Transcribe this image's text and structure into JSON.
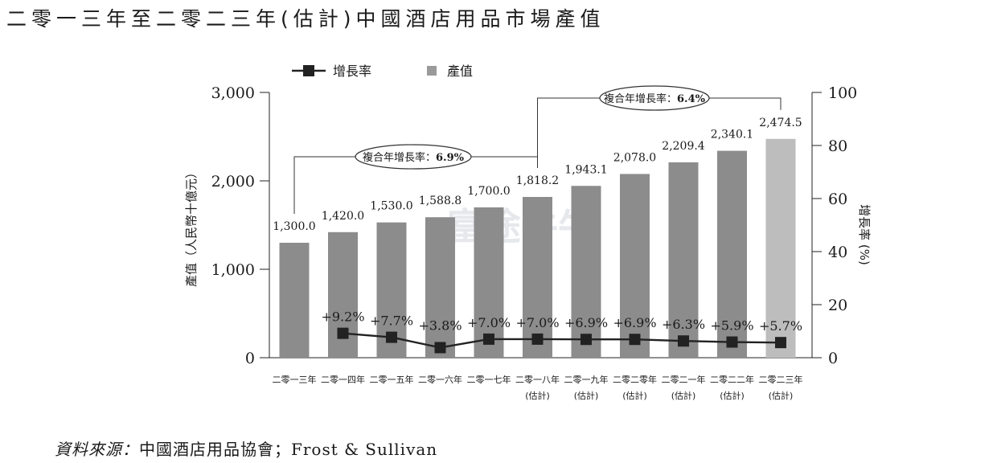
{
  "title": "二零一三年至二零二三年(估計)中國酒店用品市場產值",
  "source": {
    "label": "資料來源：",
    "text": "中國酒店用品協會；Frost & Sullivan"
  },
  "legend": {
    "growth": "增長率",
    "value": "產值"
  },
  "cagr": [
    {
      "label": "複合年增長率：",
      "value": "6.9%"
    },
    {
      "label": "複合年增長率：",
      "value": "6.4%"
    }
  ],
  "watermark": "富途牛牛",
  "chart_data": {
    "type": "bar",
    "categories": [
      [
        "二零一三年",
        ""
      ],
      [
        "二零一四年",
        ""
      ],
      [
        "二零一五年",
        ""
      ],
      [
        "二零一六年",
        ""
      ],
      [
        "二零一七年",
        ""
      ],
      [
        "二零一八年",
        "(估計)"
      ],
      [
        "二零一九年",
        "(估計)"
      ],
      [
        "二零二零年",
        "(估計)"
      ],
      [
        "二零二一年",
        "(估計)"
      ],
      [
        "二零二二年",
        "(估計)"
      ],
      [
        "二零二三年",
        "(估計)"
      ]
    ],
    "series": [
      {
        "name": "產值",
        "axis": "left",
        "values": [
          1300.0,
          1420.0,
          1530.0,
          1588.8,
          1700.0,
          1818.2,
          1943.1,
          2078.0,
          2209.4,
          2340.1,
          2474.5
        ],
        "labels": [
          "1,300.0",
          "1,420.0",
          "1,530.0",
          "1,588.8",
          "1,700.0",
          "1,818.2",
          "1,943.1",
          "2,078.0",
          "2,209.4",
          "2,340.1",
          "2,474.5"
        ],
        "color": "#8c8c8c",
        "last_color": "#bdbdbd"
      },
      {
        "name": "增長率",
        "type": "line",
        "axis": "right",
        "values": [
          null,
          9.2,
          7.7,
          3.8,
          7.0,
          7.0,
          6.9,
          6.9,
          6.3,
          5.9,
          5.7
        ],
        "labels": [
          "",
          "+9.2%",
          "+7.7%",
          "+3.8%",
          "+7.0%",
          "+7.0%",
          "+6.9%",
          "+6.9%",
          "+6.3%",
          "+5.9%",
          "+5.7%"
        ],
        "color": "#222222"
      }
    ],
    "ylabel": "產值（人民幣十億元）",
    "ylabel_right": "增長率 (%)",
    "ylim": [
      0,
      3000
    ],
    "yticks": [
      "0",
      "1,000",
      "2,000",
      "3,000"
    ],
    "ylim_right": [
      0,
      100
    ],
    "yticks_right": [
      "0",
      "20",
      "40",
      "60",
      "80",
      "100"
    ],
    "grid": false,
    "legend_position": "top"
  }
}
